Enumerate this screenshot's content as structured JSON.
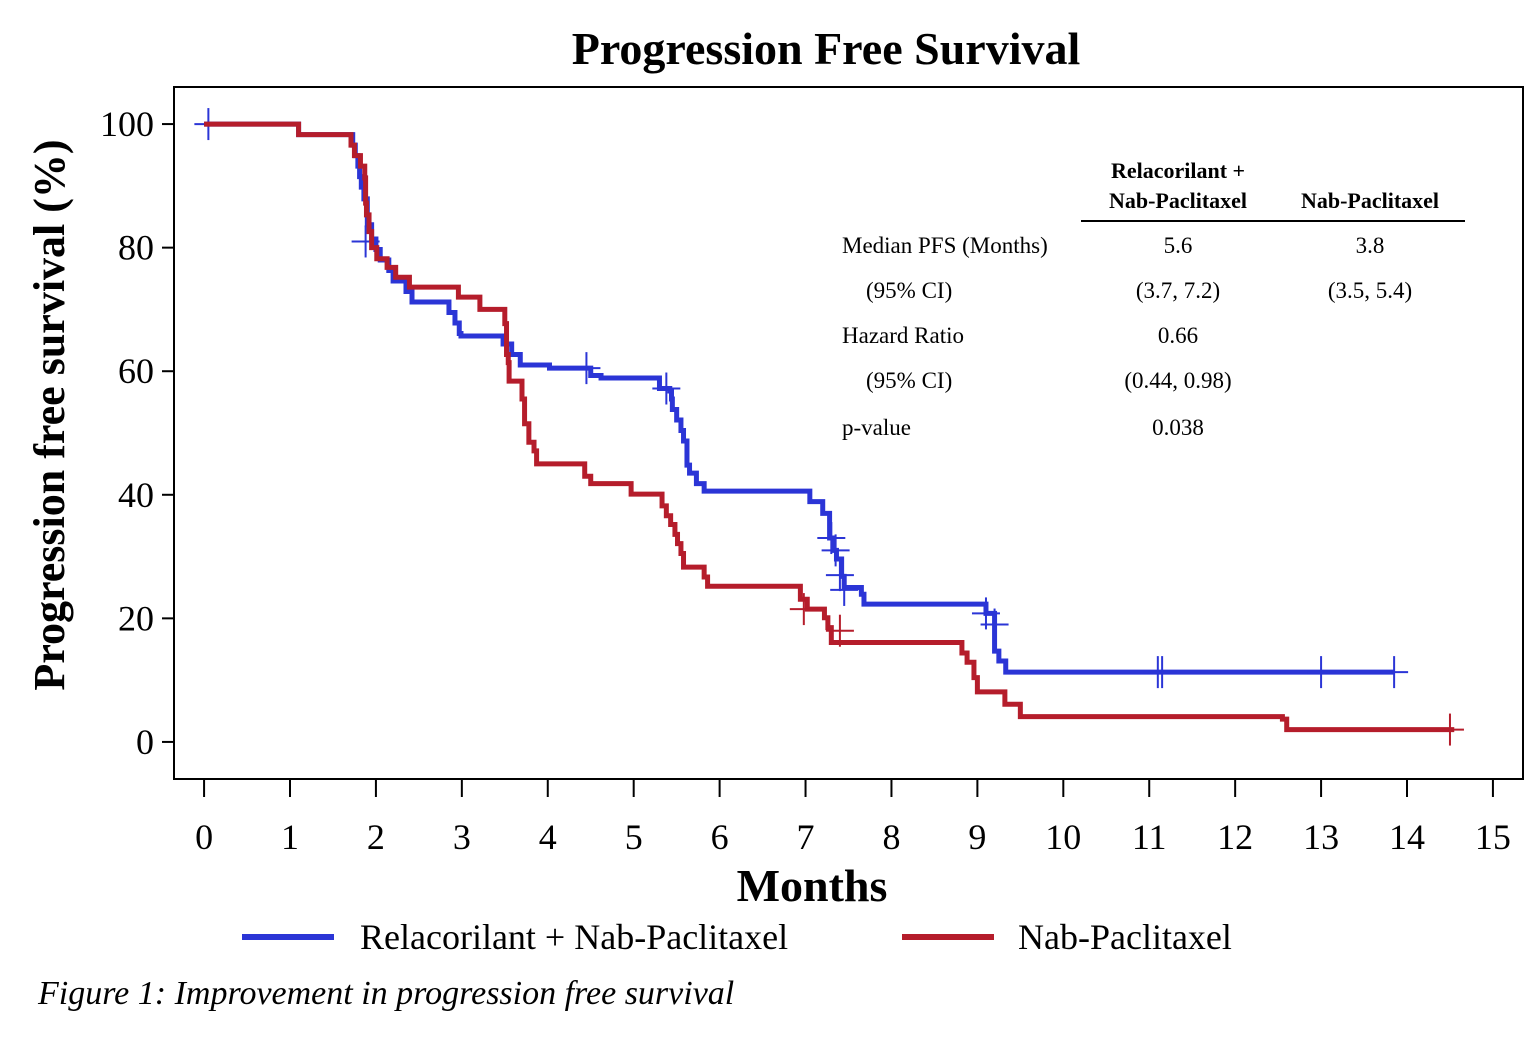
{
  "chart_data": {
    "type": "line",
    "subtype": "kaplan-meier step",
    "title": "Progression Free Survival",
    "xlabel": "Months",
    "ylabel": "Progression free survival (%)",
    "xlim": [
      -0.35,
      15.35
    ],
    "ylim": [
      -6,
      106
    ],
    "x_ticks": [
      0,
      1,
      2,
      3,
      4,
      5,
      6,
      7,
      8,
      9,
      10,
      11,
      12,
      13,
      14,
      15
    ],
    "y_ticks": [
      0,
      20,
      40,
      60,
      80,
      100
    ],
    "legend_position": "bottom",
    "series": [
      {
        "name": "Relacorilant + Nab-Paclitaxel",
        "color": "#2b35d6",
        "steps": [
          [
            0,
            100
          ],
          [
            1.1,
            98.3
          ],
          [
            1.73,
            96.6
          ],
          [
            1.76,
            94.9
          ],
          [
            1.79,
            93.2
          ],
          [
            1.81,
            91.5
          ],
          [
            1.83,
            89.8
          ],
          [
            1.86,
            87.9
          ],
          [
            1.9,
            83.7
          ],
          [
            1.95,
            81.4
          ],
          [
            2.0,
            79.7
          ],
          [
            2.05,
            78.0
          ],
          [
            2.15,
            76.3
          ],
          [
            2.2,
            74.6
          ],
          [
            2.35,
            72.9
          ],
          [
            2.42,
            71.2
          ],
          [
            2.85,
            69.5
          ],
          [
            2.92,
            67.8
          ],
          [
            2.97,
            66.1
          ],
          [
            2.99,
            65.7
          ],
          [
            3.48,
            64.4
          ],
          [
            3.58,
            62.7
          ],
          [
            3.68,
            61.0
          ],
          [
            4.02,
            60.5
          ],
          [
            4.5,
            59.3
          ],
          [
            4.62,
            58.9
          ],
          [
            5.3,
            57.2
          ],
          [
            5.42,
            56.8
          ],
          [
            5.44,
            55.5
          ],
          [
            5.45,
            53.8
          ],
          [
            5.5,
            52.1
          ],
          [
            5.55,
            50.4
          ],
          [
            5.58,
            48.7
          ],
          [
            5.62,
            44.8
          ],
          [
            5.65,
            43.5
          ],
          [
            5.73,
            41.8
          ],
          [
            5.82,
            40.6
          ],
          [
            7.05,
            38.9
          ],
          [
            7.2,
            37.0
          ],
          [
            7.28,
            33.0
          ],
          [
            7.33,
            31.0
          ],
          [
            7.36,
            29.6
          ],
          [
            7.42,
            26.8
          ],
          [
            7.45,
            25.0
          ],
          [
            7.65,
            23.9
          ],
          [
            7.68,
            22.3
          ],
          [
            9.1,
            20.8
          ],
          [
            9.2,
            14.7
          ],
          [
            9.25,
            13.1
          ],
          [
            9.33,
            11.3
          ],
          [
            13.85,
            11.3
          ]
        ],
        "censor_marks": [
          [
            0.05,
            100
          ],
          [
            1.88,
            81.0
          ],
          [
            5.38,
            57.2
          ],
          [
            4.45,
            60.5
          ],
          [
            7.3,
            33.0
          ],
          [
            7.35,
            31.0
          ],
          [
            7.4,
            27.0
          ],
          [
            7.45,
            24.6
          ],
          [
            9.1,
            20.8
          ],
          [
            9.2,
            19.0
          ],
          [
            11.1,
            11.3
          ],
          [
            11.15,
            11.3
          ],
          [
            13.0,
            11.3
          ],
          [
            13.85,
            11.3
          ]
        ]
      },
      {
        "name": "Nab-Paclitaxel",
        "color": "#b51d2b",
        "steps": [
          [
            0,
            100
          ],
          [
            1.1,
            98.3
          ],
          [
            1.71,
            96.6
          ],
          [
            1.75,
            94.9
          ],
          [
            1.82,
            93.2
          ],
          [
            1.87,
            91.3
          ],
          [
            1.88,
            87.2
          ],
          [
            1.89,
            85.3
          ],
          [
            1.92,
            82.6
          ],
          [
            1.95,
            80.0
          ],
          [
            2.01,
            78.2
          ],
          [
            2.13,
            76.8
          ],
          [
            2.23,
            75.2
          ],
          [
            2.39,
            73.6
          ],
          [
            2.96,
            72.0
          ],
          [
            3.21,
            70.0
          ],
          [
            3.5,
            67.7
          ],
          [
            3.52,
            62.7
          ],
          [
            3.54,
            61.4
          ],
          [
            3.55,
            58.4
          ],
          [
            3.7,
            55.5
          ],
          [
            3.73,
            51.5
          ],
          [
            3.78,
            48.5
          ],
          [
            3.84,
            47.1
          ],
          [
            3.87,
            45.0
          ],
          [
            4.43,
            43.0
          ],
          [
            4.5,
            41.8
          ],
          [
            4.97,
            40.1
          ],
          [
            5.33,
            38.2
          ],
          [
            5.38,
            36.6
          ],
          [
            5.43,
            35.2
          ],
          [
            5.48,
            33.6
          ],
          [
            5.51,
            32.1
          ],
          [
            5.55,
            30.5
          ],
          [
            5.58,
            28.3
          ],
          [
            5.82,
            26.7
          ],
          [
            5.86,
            25.2
          ],
          [
            6.94,
            23.1
          ],
          [
            7.02,
            21.5
          ],
          [
            7.22,
            20.1
          ],
          [
            7.26,
            18.5
          ],
          [
            7.3,
            16.1
          ],
          [
            8.82,
            14.4
          ],
          [
            8.88,
            12.9
          ],
          [
            8.96,
            10.4
          ],
          [
            9.0,
            8.1
          ],
          [
            9.32,
            6.1
          ],
          [
            9.5,
            4.1
          ],
          [
            12.55,
            3.7
          ],
          [
            12.6,
            2.0
          ],
          [
            14.55,
            2.0
          ]
        ],
        "censor_marks": [
          [
            6.98,
            21.5
          ],
          [
            7.4,
            18.0
          ],
          [
            14.5,
            2.0
          ]
        ]
      }
    ],
    "table": {
      "col_headers": [
        [
          "Relacorilant +",
          "Nab-Paclitaxel"
        ],
        [
          "Nab-Paclitaxel"
        ]
      ],
      "rows": [
        {
          "label": "Median PFS (Months)",
          "col1": "5.6",
          "col2": "3.8"
        },
        {
          "label": "(95% CI)",
          "col1": "(3.7, 7.2)",
          "col2": "(3.5, 5.4)"
        },
        {
          "label": "Hazard Ratio",
          "col1": "0.66",
          "col2": ""
        },
        {
          "label": "(95% CI)",
          "col1": "(0.44, 0.98)",
          "col2": ""
        },
        {
          "label": "p-value",
          "col1": "0.038",
          "col2": ""
        }
      ]
    }
  },
  "caption": "Figure 1: Improvement in progression free survival"
}
